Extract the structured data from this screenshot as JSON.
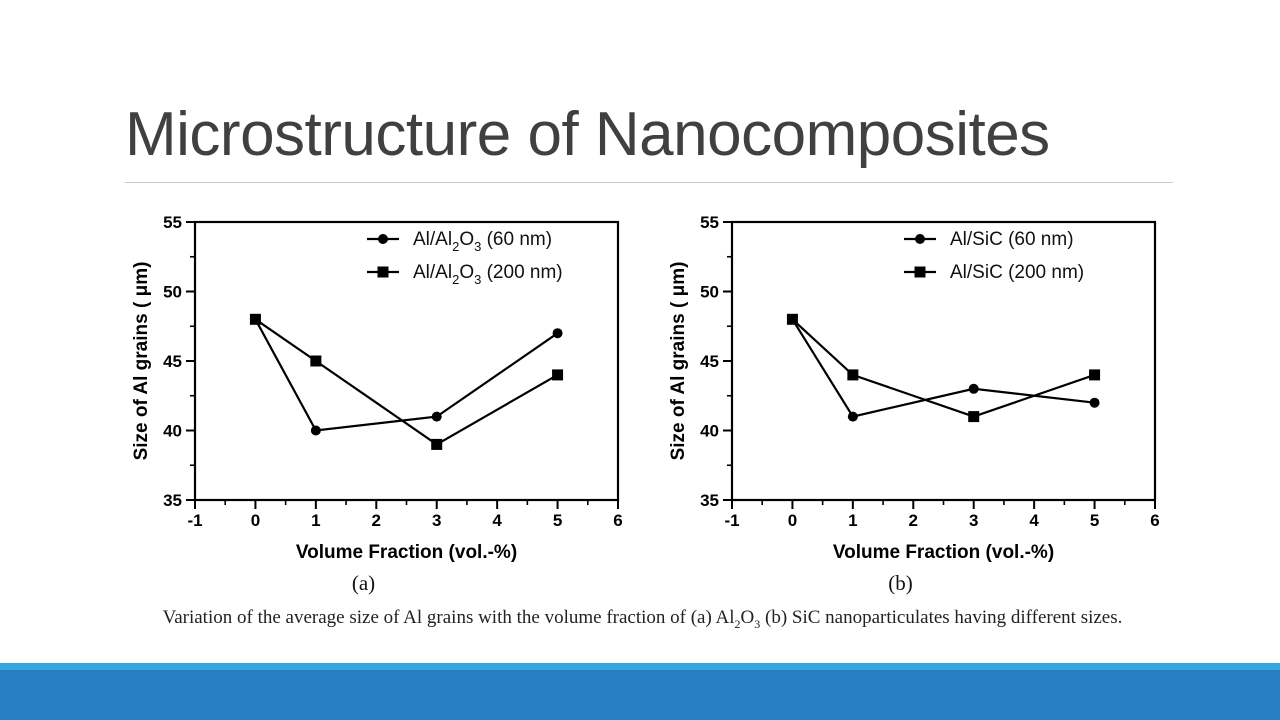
{
  "slide": {
    "title": "Microstructure of Nanocomposites",
    "caption": {
      "prefix": "Variation of the average size of Al grains with the volume fraction of (a) Al",
      "sub1": "2",
      "mid": "O",
      "sub2": "3",
      "suffix": " (b) SiC nanoparticulates having different sizes."
    },
    "colors": {
      "title": "#404040",
      "footer_band": "#2a7fc2",
      "footer_edge": "#36a7dd",
      "plot_ink": "#000000"
    }
  },
  "chart_data": [
    {
      "type": "line",
      "panel_label": "(a)",
      "xlabel": "Volume Fraction (vol.-%)",
      "ylabel": "Size of Al grains ( μm)",
      "xlim": [
        -1,
        6
      ],
      "ylim": [
        35,
        55
      ],
      "xticks": [
        -1,
        0,
        1,
        2,
        3,
        4,
        5,
        6
      ],
      "yticks": [
        35,
        40,
        45,
        50,
        55
      ],
      "grid": false,
      "legend_position": "top-right",
      "series": [
        {
          "name": "Al/Al2O3 (60 nm)",
          "legend": {
            "pre": "Al/Al",
            "s1": "2",
            "mid": "O",
            "s2": "3",
            "post": " (60 nm)"
          },
          "marker": "circle",
          "x": [
            0,
            1,
            3,
            5
          ],
          "y": [
            48,
            40,
            41,
            47
          ]
        },
        {
          "name": "Al/Al2O3 (200 nm)",
          "legend": {
            "pre": "Al/Al",
            "s1": "2",
            "mid": "O",
            "s2": "3",
            "post": " (200 nm)"
          },
          "marker": "square",
          "x": [
            0,
            1,
            3,
            5
          ],
          "y": [
            48,
            45,
            39,
            44
          ]
        }
      ]
    },
    {
      "type": "line",
      "panel_label": "(b)",
      "xlabel": "Volume Fraction (vol.-%)",
      "ylabel": "Size of Al grains ( μm)",
      "xlim": [
        -1,
        6
      ],
      "ylim": [
        35,
        55
      ],
      "xticks": [
        -1,
        0,
        1,
        2,
        3,
        4,
        5,
        6
      ],
      "yticks": [
        35,
        40,
        45,
        50,
        55
      ],
      "grid": false,
      "legend_position": "top-right",
      "series": [
        {
          "name": "Al/SiC (60 nm)",
          "legend": {
            "pre": "Al/SiC (60 nm)",
            "s1": "",
            "mid": "",
            "s2": "",
            "post": ""
          },
          "marker": "circle",
          "x": [
            0,
            1,
            3,
            5
          ],
          "y": [
            48,
            41,
            43,
            42
          ]
        },
        {
          "name": "Al/SiC (200 nm)",
          "legend": {
            "pre": "Al/SiC (200 nm)",
            "s1": "",
            "mid": "",
            "s2": "",
            "post": ""
          },
          "marker": "square",
          "x": [
            0,
            1,
            3,
            5
          ],
          "y": [
            48,
            44,
            41,
            44
          ]
        }
      ]
    }
  ]
}
